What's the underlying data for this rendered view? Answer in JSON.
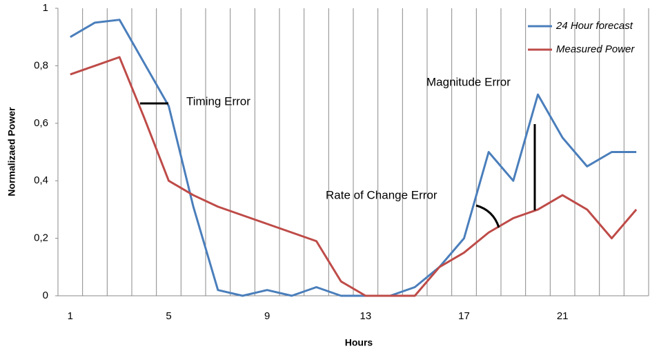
{
  "chart_data": {
    "type": "line",
    "x_label": "Hours",
    "y_label": "Normalizaed Power",
    "categories": [
      "1",
      null,
      null,
      null,
      "5",
      null,
      null,
      null,
      "9",
      null,
      null,
      null,
      "13",
      null,
      null,
      null,
      "17",
      null,
      null,
      null,
      "21",
      null,
      null,
      null
    ],
    "series": [
      {
        "name": "24 Hour forecast",
        "color": "#4a7ebb",
        "values": [
          0.9,
          0.95,
          0.96,
          0.81,
          0.66,
          0.31,
          0.02,
          0,
          0.02,
          0,
          0.03,
          0,
          0,
          0,
          0.03,
          0.1,
          0.2,
          0.5,
          0.4,
          0.7,
          0.55,
          0.45,
          0.5,
          0.5
        ]
      },
      {
        "name": "Measured Power",
        "color": "#be4b48",
        "values": [
          0.77,
          0.8,
          0.83,
          0.62,
          0.4,
          0.35,
          0.31,
          0.28,
          0.25,
          0.22,
          0.19,
          0.05,
          0,
          0,
          0,
          0.1,
          0.15,
          0.22,
          0.27,
          0.3,
          0.35,
          0.3,
          0.2,
          0.3
        ]
      }
    ],
    "ylim": [
      0,
      1
    ],
    "yticks": [
      0,
      {
        "value": 0.2,
        "label": "0,2"
      },
      {
        "value": 0.4,
        "label": "0,4"
      },
      {
        "value": 0.6,
        "label": "0,6"
      },
      {
        "value": 0.8,
        "label": "0,8"
      },
      1
    ],
    "grid": false,
    "vertical_grid": true,
    "legend": "top-right",
    "annotations": [
      "Timing Error",
      "Magnitude Error",
      "Rate of Change Error"
    ]
  }
}
